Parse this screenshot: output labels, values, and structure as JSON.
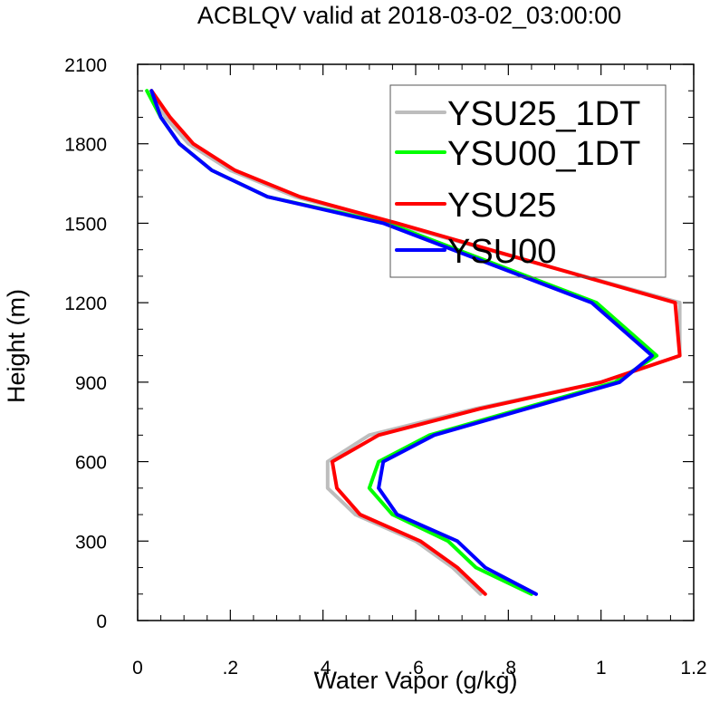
{
  "chart_data": {
    "type": "line",
    "title": "ACBLQV valid at 2018-03-02_03:00:00",
    "xlabel": "Water Vapor (g/kg)",
    "ylabel": "Height (m)",
    "xlim": [
      0,
      1.2
    ],
    "ylim": [
      0,
      2100
    ],
    "x_ticks": [
      0,
      0.2,
      0.4,
      0.6,
      0.8,
      1.0,
      1.2
    ],
    "x_tick_labels": [
      "0",
      ".2",
      ".4",
      ".6",
      ".8",
      "1",
      "1.2"
    ],
    "y_ticks": [
      0,
      300,
      600,
      900,
      1200,
      1500,
      1800,
      2100
    ],
    "y_tick_labels": [
      "0",
      "300",
      "600",
      "900",
      "1200",
      "1500",
      "1800",
      "2100"
    ],
    "legend_position": "top-right",
    "series": [
      {
        "name": "YSU25_1DT",
        "color": "#bdbdbd",
        "points": [
          [
            0.74,
            100
          ],
          [
            0.68,
            200
          ],
          [
            0.6,
            300
          ],
          [
            0.47,
            400
          ],
          [
            0.41,
            500
          ],
          [
            0.41,
            600
          ],
          [
            0.5,
            700
          ],
          [
            0.73,
            800
          ],
          [
            1.0,
            900
          ],
          [
            1.17,
            1000
          ],
          [
            1.17,
            1200
          ],
          [
            0.55,
            1500
          ],
          [
            0.34,
            1600
          ],
          [
            0.2,
            1700
          ],
          [
            0.11,
            1800
          ],
          [
            0.06,
            1900
          ],
          [
            0.03,
            2000
          ]
        ]
      },
      {
        "name": "YSU00_1DT",
        "color": "#00ff00",
        "points": [
          [
            0.85,
            100
          ],
          [
            0.73,
            200
          ],
          [
            0.67,
            300
          ],
          [
            0.55,
            400
          ],
          [
            0.5,
            500
          ],
          [
            0.52,
            600
          ],
          [
            0.63,
            700
          ],
          [
            0.83,
            800
          ],
          [
            1.03,
            900
          ],
          [
            1.12,
            1000
          ],
          [
            0.99,
            1200
          ],
          [
            0.54,
            1500
          ],
          [
            0.28,
            1600
          ],
          [
            0.16,
            1700
          ],
          [
            0.09,
            1800
          ],
          [
            0.05,
            1900
          ],
          [
            0.02,
            2000
          ]
        ]
      },
      {
        "name": "YSU25",
        "color": "#ff0000",
        "points": [
          [
            0.75,
            100
          ],
          [
            0.69,
            200
          ],
          [
            0.61,
            300
          ],
          [
            0.48,
            400
          ],
          [
            0.43,
            500
          ],
          [
            0.42,
            600
          ],
          [
            0.52,
            700
          ],
          [
            0.74,
            800
          ],
          [
            1.0,
            900
          ],
          [
            1.17,
            1000
          ],
          [
            1.16,
            1200
          ],
          [
            0.56,
            1500
          ],
          [
            0.35,
            1600
          ],
          [
            0.21,
            1700
          ],
          [
            0.12,
            1800
          ],
          [
            0.07,
            1900
          ],
          [
            0.03,
            2000
          ]
        ]
      },
      {
        "name": "YSU00",
        "color": "#0000ff",
        "points": [
          [
            0.86,
            100
          ],
          [
            0.75,
            200
          ],
          [
            0.69,
            300
          ],
          [
            0.56,
            400
          ],
          [
            0.52,
            500
          ],
          [
            0.53,
            600
          ],
          [
            0.64,
            700
          ],
          [
            0.84,
            800
          ],
          [
            1.04,
            900
          ],
          [
            1.11,
            1000
          ],
          [
            0.98,
            1200
          ],
          [
            0.53,
            1500
          ],
          [
            0.28,
            1600
          ],
          [
            0.16,
            1700
          ],
          [
            0.09,
            1800
          ],
          [
            0.05,
            1900
          ],
          [
            0.03,
            2000
          ]
        ]
      }
    ]
  }
}
